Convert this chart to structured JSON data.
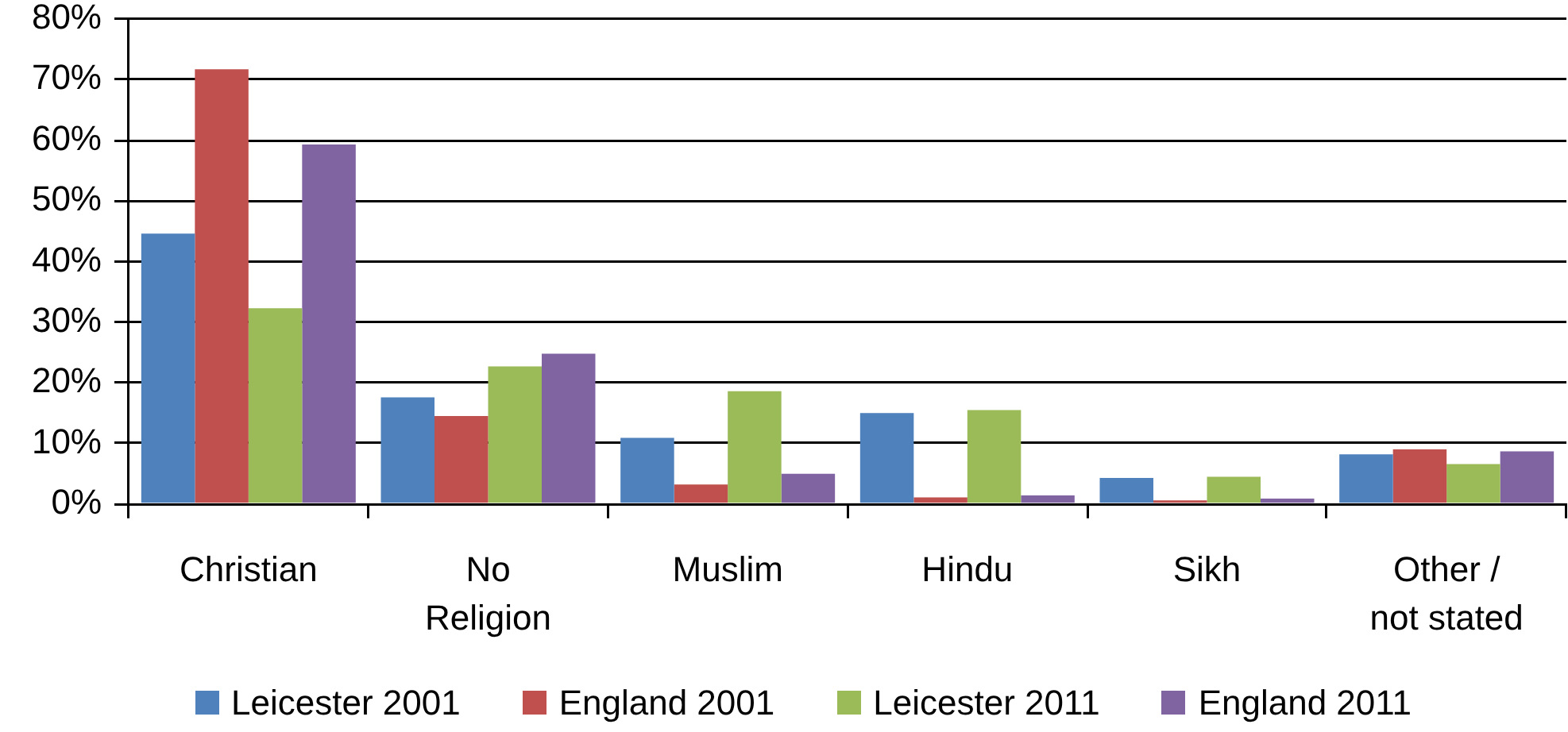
{
  "chart_data": {
    "type": "bar",
    "categories": [
      "Christian",
      "No Religion",
      "Muslim",
      "Hindu",
      "Sikh",
      "Other / not stated"
    ],
    "series": [
      {
        "name": "Leicester 2001",
        "color": "#4f81bd",
        "values": [
          44.6,
          17.6,
          10.9,
          15.0,
          4.3,
          8.2
        ]
      },
      {
        "name": "England 2001",
        "color": "#c0504d",
        "values": [
          71.7,
          14.5,
          3.2,
          1.1,
          0.6,
          9.0
        ]
      },
      {
        "name": "Leicester 2011",
        "color": "#9bbb59",
        "values": [
          32.3,
          22.7,
          18.6,
          15.5,
          4.5,
          6.6
        ]
      },
      {
        "name": "England 2011",
        "color": "#8064a2",
        "values": [
          59.3,
          24.8,
          5.0,
          1.4,
          0.9,
          8.7
        ]
      }
    ],
    "ylim": [
      0,
      80
    ],
    "yticks": [
      {
        "value": 0,
        "label": "0%"
      },
      {
        "value": 10,
        "label": "10%"
      },
      {
        "value": 20,
        "label": "20%"
      },
      {
        "value": 30,
        "label": "30%"
      },
      {
        "value": 40,
        "label": "40%"
      },
      {
        "value": 50,
        "label": "50%"
      },
      {
        "value": 60,
        "label": "60%"
      },
      {
        "value": 70,
        "label": "70%"
      },
      {
        "value": 80,
        "label": "80%"
      }
    ],
    "grid": "y",
    "legend": "bottom"
  }
}
